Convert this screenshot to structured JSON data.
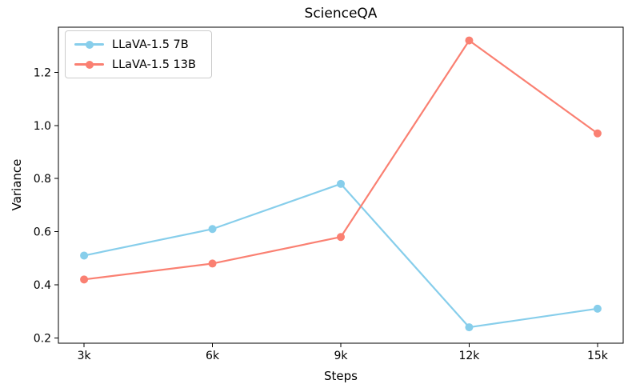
{
  "chart_data": {
    "type": "line",
    "title": "ScienceQA",
    "xlabel": "Steps",
    "ylabel": "Variance",
    "categories": [
      "3k",
      "6k",
      "9k",
      "12k",
      "15k"
    ],
    "series": [
      {
        "id": "llava-7b",
        "name": "LLaVA-1.5 7B",
        "color": "#87CEEB",
        "values": [
          0.51,
          0.61,
          0.78,
          0.24,
          0.31
        ]
      },
      {
        "id": "llava-13b",
        "name": "LLaVA-1.5 13B",
        "color": "#FA8072",
        "values": [
          0.42,
          0.48,
          0.58,
          1.32,
          0.97
        ]
      }
    ],
    "y_tick_labels": [
      "0.2",
      "0.4",
      "0.6",
      "0.8",
      "1.0",
      "1.2"
    ],
    "ylim": [
      0.18,
      1.37
    ],
    "xlim_index": [
      -0.2,
      4.2
    ],
    "grid": false,
    "legend_position": "upper-left",
    "marker": "circle",
    "line_width": 2.2,
    "marker_radius": 5,
    "tick_font_size": 14,
    "frame_color": "#000000",
    "text_color": "#000000",
    "legend_border_color": "#cccccc",
    "background": "#ffffff"
  }
}
